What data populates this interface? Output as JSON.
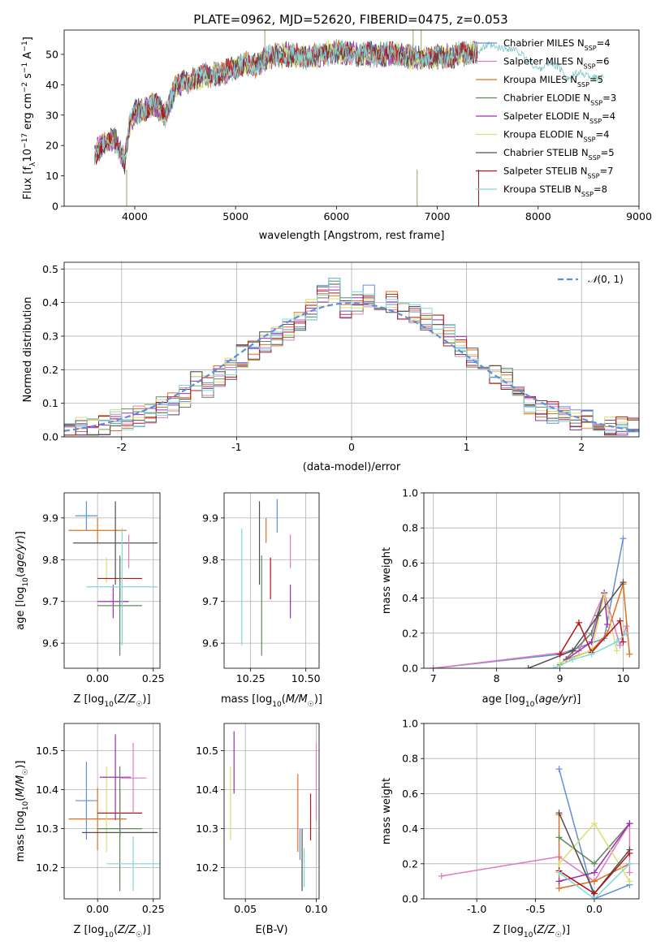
{
  "figure": {
    "title": "PLATE=0962, MJD=52620, FIBERID=0475, z=0.053"
  },
  "colors": {
    "chabrier_miles": "#5f90d8",
    "salpeter_miles": "#e07bbf",
    "kroupa_miles": "#e07020",
    "chabrier_elodie": "#608860",
    "salpeter_elodie": "#9a30b0",
    "kroupa_elodie": "#d8e070",
    "chabrier_stelib": "#505050",
    "salpeter_stelib": "#b01818",
    "kroupa_stelib": "#80d8d8"
  },
  "chart_data": [
    {
      "type": "line",
      "title": "PLATE=0962, MJD=52620, FIBERID=0475, z=0.053",
      "xlabel": "wavelength [Angstrom, rest frame]",
      "ylabel": "Flux [f_λ10^-17 erg cm^-2 s^-1 A^-1]",
      "xlim": [
        3300,
        9000
      ],
      "ylim": [
        0,
        58
      ],
      "xticks": [
        4000,
        5000,
        6000,
        7000,
        8000,
        9000
      ],
      "yticks": [
        0,
        10,
        20,
        30,
        40,
        50
      ],
      "legend_position": "top-right",
      "grid": false,
      "continuum": {
        "x": [
          3600,
          3700,
          3800,
          3900,
          3950,
          4000,
          4100,
          4200,
          4300,
          4400,
          4500,
          4700,
          4900,
          5100,
          5200,
          5300,
          5500,
          5700,
          5900,
          6000,
          6200,
          6400,
          6600,
          6800,
          7000,
          7200,
          7400
        ],
        "y": [
          17,
          21,
          22,
          15,
          27,
          31,
          32,
          34,
          30,
          39,
          41,
          43,
          44,
          47,
          46,
          49,
          50,
          49,
          50,
          51,
          50,
          50,
          50,
          49,
          49,
          50,
          51
        ]
      },
      "model_extension": {
        "x": [
          7400,
          7500,
          7600,
          7700,
          7800,
          7900,
          8000,
          8100,
          8200,
          8300,
          8400,
          8500,
          8600,
          8650
        ],
        "y": [
          51,
          53,
          52,
          52,
          51,
          48,
          45,
          47,
          46,
          42,
          44,
          43,
          42,
          43
        ]
      },
      "spikes": [
        {
          "x": 3920,
          "y": 0
        },
        {
          "x": 6800,
          "y": 0
        },
        {
          "x": 7410,
          "y": 0
        },
        {
          "x": 5290,
          "y": 58
        },
        {
          "x": 6760,
          "y": 58
        },
        {
          "x": 6840,
          "y": 58
        }
      ],
      "series": [
        {
          "name": "Chabrier MILES",
          "nssp": "4",
          "color_key": "chabrier_miles"
        },
        {
          "name": "Salpeter MILES",
          "nssp": "6",
          "color_key": "salpeter_miles"
        },
        {
          "name": "Kroupa MILES",
          "nssp": "5",
          "color_key": "kroupa_miles"
        },
        {
          "name": "Chabrier ELODIE",
          "nssp": "3",
          "color_key": "chabrier_elodie"
        },
        {
          "name": "Salpeter ELODIE",
          "nssp": "4",
          "color_key": "salpeter_elodie"
        },
        {
          "name": "Kroupa ELODIE",
          "nssp": "4",
          "color_key": "kroupa_elodie"
        },
        {
          "name": "Chabrier STELIB",
          "nssp": "5",
          "color_key": "chabrier_stelib"
        },
        {
          "name": "Salpeter STELIB",
          "nssp": "7",
          "color_key": "salpeter_stelib"
        },
        {
          "name": "Kroupa STELIB",
          "nssp": "8",
          "color_key": "kroupa_stelib"
        }
      ]
    },
    {
      "type": "line",
      "xlabel": "(data-model)/error",
      "ylabel": "Normed distribution",
      "xlim": [
        -2.5,
        2.5
      ],
      "ylim": [
        0,
        0.52
      ],
      "xticks": [
        -2,
        -1,
        0,
        1,
        2
      ],
      "yticks": [
        0.0,
        0.1,
        0.2,
        0.3,
        0.4,
        0.5
      ],
      "grid": true,
      "legend_position": "top-right",
      "legend_label": "N(0,1)",
      "bin_width": 0.1,
      "bin_start": -2.5,
      "base_histogram": [
        0.03,
        0.03,
        0.03,
        0.04,
        0.05,
        0.05,
        0.06,
        0.07,
        0.09,
        0.1,
        0.12,
        0.16,
        0.15,
        0.18,
        0.2,
        0.24,
        0.25,
        0.28,
        0.3,
        0.32,
        0.35,
        0.38,
        0.42,
        0.44,
        0.38,
        0.4,
        0.42,
        0.4,
        0.4,
        0.37,
        0.36,
        0.35,
        0.33,
        0.3,
        0.27,
        0.24,
        0.2,
        0.19,
        0.17,
        0.13,
        0.1,
        0.08,
        0.07,
        0.06,
        0.05,
        0.05,
        0.04,
        0.03,
        0.03,
        0.03
      ],
      "series": [
        {
          "name": "Chabrier MILES",
          "color_key": "chabrier_miles"
        },
        {
          "name": "Salpeter MILES",
          "color_key": "salpeter_miles"
        },
        {
          "name": "Kroupa MILES",
          "color_key": "kroupa_miles"
        },
        {
          "name": "Chabrier ELODIE",
          "color_key": "chabrier_elodie"
        },
        {
          "name": "Salpeter ELODIE",
          "color_key": "salpeter_elodie"
        },
        {
          "name": "Kroupa ELODIE",
          "color_key": "kroupa_elodie"
        },
        {
          "name": "Chabrier STELIB",
          "color_key": "chabrier_stelib"
        },
        {
          "name": "Salpeter STELIB",
          "color_key": "salpeter_stelib"
        },
        {
          "name": "Kroupa STELIB",
          "color_key": "kroupa_stelib"
        }
      ]
    },
    {
      "type": "scatter",
      "xlabel": "Z [log10(Z/Z☉)]",
      "ylabel": "age [log10(age/yr)]",
      "xlim": [
        -0.15,
        0.28
      ],
      "ylim": [
        9.54,
        9.96
      ],
      "xticks": [
        0.0,
        0.25
      ],
      "yticks": [
        9.6,
        9.7,
        9.8,
        9.9
      ],
      "grid": true,
      "points": [
        {
          "color_key": "chabrier_miles",
          "x": -0.05,
          "xerr": 0.05,
          "y": 9.905,
          "yerr": 0.035
        },
        {
          "color_key": "kroupa_miles",
          "x": 0.0,
          "xerr": 0.13,
          "y": 9.87,
          "yerr": 0.03
        },
        {
          "color_key": "kroupa_elodie",
          "x": 0.04,
          "xerr": 0.0,
          "y": 9.775,
          "yerr": 0.03
        },
        {
          "color_key": "chabrier_stelib",
          "x": 0.08,
          "xerr": 0.19,
          "y": 9.84,
          "yerr": 0.1
        },
        {
          "color_key": "salpeter_stelib",
          "x": 0.1,
          "xerr": 0.1,
          "y": 9.755,
          "yerr": 0.05
        },
        {
          "color_key": "salpeter_elodie",
          "x": 0.07,
          "xerr": 0.07,
          "y": 9.7,
          "yerr": 0.04
        },
        {
          "color_key": "chabrier_elodie",
          "x": 0.1,
          "xerr": 0.1,
          "y": 9.69,
          "yerr": 0.12
        },
        {
          "color_key": "kroupa_stelib",
          "x": 0.11,
          "xerr": 0.16,
          "y": 9.735,
          "yerr": 0.14
        },
        {
          "color_key": "salpeter_miles",
          "x": 0.14,
          "xerr": 0.0,
          "y": 9.82,
          "yerr": 0.04
        }
      ]
    },
    {
      "type": "scatter",
      "xlabel": "mass [log10(M/M☉)]",
      "ylabel": "",
      "xlim": [
        10.13,
        10.56
      ],
      "ylim": [
        9.54,
        9.96
      ],
      "xticks": [
        10.25,
        10.5
      ],
      "yticks": [
        9.6,
        9.7,
        9.8,
        9.9
      ],
      "grid": true,
      "points": [
        {
          "color_key": "chabrier_miles",
          "x": 10.37,
          "xerr": 0.0,
          "y": 9.905,
          "yerr": 0.04
        },
        {
          "color_key": "kroupa_miles",
          "x": 10.32,
          "xerr": 0.0,
          "y": 9.87,
          "yerr": 0.03
        },
        {
          "color_key": "kroupa_elodie",
          "x": 10.34,
          "xerr": 0.0,
          "y": 9.775,
          "yerr": 0.03
        },
        {
          "color_key": "chabrier_stelib",
          "x": 10.29,
          "xerr": 0.0,
          "y": 9.84,
          "yerr": 0.1
        },
        {
          "color_key": "salpeter_stelib",
          "x": 10.34,
          "xerr": 0.0,
          "y": 9.755,
          "yerr": 0.05
        },
        {
          "color_key": "salpeter_elodie",
          "x": 10.43,
          "xerr": 0.0,
          "y": 9.7,
          "yerr": 0.04
        },
        {
          "color_key": "chabrier_elodie",
          "x": 10.3,
          "xerr": 0.0,
          "y": 9.69,
          "yerr": 0.12
        },
        {
          "color_key": "kroupa_stelib",
          "x": 10.21,
          "xerr": 0.0,
          "y": 9.735,
          "yerr": 0.14
        },
        {
          "color_key": "salpeter_miles",
          "x": 10.43,
          "xerr": 0.0,
          "y": 9.82,
          "yerr": 0.04
        }
      ]
    },
    {
      "type": "line",
      "xlabel": "age [log10(age/yr)]",
      "ylabel": "mass weight",
      "xlim": [
        6.85,
        10.25
      ],
      "ylim": [
        0,
        1.0
      ],
      "xticks": [
        7,
        8,
        9,
        10
      ],
      "yticks": [
        0.0,
        0.2,
        0.4,
        0.6,
        0.8,
        1.0
      ],
      "grid": true,
      "series": [
        {
          "color_key": "chabrier_miles",
          "x": [
            7.0,
            9.0,
            9.7,
            10.0
          ],
          "y": [
            0.0,
            0.08,
            0.17,
            0.74
          ]
        },
        {
          "color_key": "salpeter_miles",
          "x": [
            7.0,
            9.3,
            9.7,
            9.95,
            10.05
          ],
          "y": [
            0.0,
            0.1,
            0.43,
            0.13,
            0.24
          ]
        },
        {
          "color_key": "kroupa_miles",
          "x": [
            9.1,
            9.5,
            9.75,
            10.0,
            10.1
          ],
          "y": [
            0.05,
            0.1,
            0.2,
            0.48,
            0.08
          ]
        },
        {
          "color_key": "chabrier_elodie",
          "x": [
            9.0,
            9.5,
            9.7
          ],
          "y": [
            0.02,
            0.2,
            0.43
          ]
        },
        {
          "color_key": "salpeter_elodie",
          "x": [
            9.1,
            9.5,
            9.7,
            9.75
          ],
          "y": [
            0.05,
            0.15,
            0.43,
            0.25
          ]
        },
        {
          "color_key": "kroupa_elodie",
          "x": [
            9.0,
            9.5,
            9.7,
            9.9
          ],
          "y": [
            0.03,
            0.1,
            0.42,
            0.1
          ]
        },
        {
          "color_key": "chabrier_stelib",
          "x": [
            8.5,
            9.2,
            9.6,
            10.0
          ],
          "y": [
            0.0,
            0.1,
            0.3,
            0.49
          ]
        },
        {
          "color_key": "salpeter_stelib",
          "x": [
            9.0,
            9.3,
            9.5,
            9.95,
            10.0
          ],
          "y": [
            0.08,
            0.26,
            0.09,
            0.27,
            0.15
          ]
        },
        {
          "color_key": "kroupa_stelib",
          "x": [
            8.9,
            9.2,
            9.5,
            9.9,
            10.05
          ],
          "y": [
            0.0,
            0.05,
            0.08,
            0.15,
            0.2
          ]
        }
      ]
    },
    {
      "type": "scatter",
      "xlabel": "Z [log10(Z/Z☉)]",
      "ylabel": "mass [log10(M/M☉)]",
      "xlim": [
        -0.15,
        0.28
      ],
      "ylim": [
        10.12,
        10.57
      ],
      "xticks": [
        0.0,
        0.25
      ],
      "yticks": [
        10.2,
        10.3,
        10.4,
        10.5
      ],
      "grid": true,
      "points": [
        {
          "color_key": "chabrier_miles",
          "x": -0.05,
          "xerr": 0.05,
          "y": 10.372,
          "yerr": 0.1
        },
        {
          "color_key": "kroupa_miles",
          "x": 0.0,
          "xerr": 0.13,
          "y": 10.325,
          "yerr": 0.08
        },
        {
          "color_key": "kroupa_elodie",
          "x": 0.04,
          "xerr": 0.0,
          "y": 10.35,
          "yerr": 0.11
        },
        {
          "color_key": "chabrier_stelib",
          "x": 0.1,
          "xerr": 0.17,
          "y": 10.29,
          "yerr": 0.01
        },
        {
          "color_key": "salpeter_stelib",
          "x": 0.1,
          "xerr": 0.1,
          "y": 10.34,
          "yerr": 0.06
        },
        {
          "color_key": "salpeter_elodie",
          "x": 0.08,
          "xerr": 0.07,
          "y": 10.432,
          "yerr": 0.11
        },
        {
          "color_key": "chabrier_elodie",
          "x": 0.1,
          "xerr": 0.1,
          "y": 10.3,
          "yerr": 0.16
        },
        {
          "color_key": "kroupa_stelib",
          "x": 0.16,
          "xerr": 0.12,
          "y": 10.21,
          "yerr": 0.07
        },
        {
          "color_key": "salpeter_miles",
          "x": 0.16,
          "xerr": 0.06,
          "y": 10.43,
          "yerr": 0.09
        }
      ]
    },
    {
      "type": "scatter",
      "xlabel": "E(B-V)",
      "ylabel": "",
      "xlim": [
        0.035,
        0.102
      ],
      "ylim": [
        10.12,
        10.57
      ],
      "xticks": [
        0.05,
        0.1
      ],
      "yticks": [
        10.2,
        10.3,
        10.4,
        10.5
      ],
      "grid": true,
      "points": [
        {
          "color_key": "kroupa_elodie",
          "x": 0.0395,
          "y": 10.365,
          "yerr": 0.095
        },
        {
          "color_key": "salpeter_elodie",
          "x": 0.042,
          "y": 10.47,
          "yerr": 0.08
        },
        {
          "color_key": "kroupa_miles",
          "x": 0.087,
          "y": 10.34,
          "yerr": 0.1
        },
        {
          "color_key": "chabrier_miles",
          "x": 0.0885,
          "y": 10.26,
          "yerr": 0.04
        },
        {
          "color_key": "chabrier_stelib",
          "x": 0.09,
          "y": 10.22,
          "yerr": 0.08
        },
        {
          "color_key": "kroupa_stelib",
          "x": 0.0915,
          "y": 10.2,
          "yerr": 0.05
        },
        {
          "color_key": "salpeter_stelib",
          "x": 0.096,
          "y": 10.33,
          "yerr": 0.06
        },
        {
          "color_key": "salpeter_miles",
          "x": 0.1,
          "y": 10.42,
          "yerr": 0.1
        }
      ]
    },
    {
      "type": "line",
      "xlabel": "Z [log10(Z/Z☉)]",
      "ylabel": "mass weight",
      "xlim": [
        -1.45,
        0.38
      ],
      "ylim": [
        0,
        1.0
      ],
      "xticks": [
        -1.0,
        -0.5,
        0.0
      ],
      "yticks": [
        0.0,
        0.2,
        0.4,
        0.6,
        0.8,
        1.0
      ],
      "grid": true,
      "series": [
        {
          "color_key": "chabrier_miles",
          "x": [
            -0.3,
            0.0,
            0.3
          ],
          "y": [
            0.74,
            0.0,
            0.08
          ]
        },
        {
          "color_key": "salpeter_miles",
          "x": [
            -1.3,
            -0.3,
            0.0,
            0.3,
            0.3
          ],
          "y": [
            0.13,
            0.24,
            0.1,
            0.43,
            0.15
          ]
        },
        {
          "color_key": "kroupa_miles",
          "x": [
            -0.3,
            -0.3,
            0.0,
            0.3
          ],
          "y": [
            0.48,
            0.06,
            0.1,
            0.2
          ]
        },
        {
          "color_key": "chabrier_elodie",
          "x": [
            -0.3,
            0.0,
            0.3
          ],
          "y": [
            0.35,
            0.2,
            0.43
          ]
        },
        {
          "color_key": "salpeter_elodie",
          "x": [
            -0.3,
            0.0,
            0.3
          ],
          "y": [
            0.1,
            0.15,
            0.43
          ]
        },
        {
          "color_key": "kroupa_elodie",
          "x": [
            -0.3,
            0.0,
            0.3
          ],
          "y": [
            0.2,
            0.43,
            0.1
          ]
        },
        {
          "color_key": "chabrier_stelib",
          "x": [
            -0.3,
            0.0,
            0.3
          ],
          "y": [
            0.49,
            0.03,
            0.28
          ]
        },
        {
          "color_key": "salpeter_stelib",
          "x": [
            -0.3,
            0.0,
            0.3
          ],
          "y": [
            0.16,
            0.03,
            0.26
          ]
        },
        {
          "color_key": "kroupa_stelib",
          "x": [
            -0.3,
            0.0,
            0.3
          ],
          "y": [
            0.15,
            0.0,
            0.2
          ]
        }
      ]
    }
  ]
}
